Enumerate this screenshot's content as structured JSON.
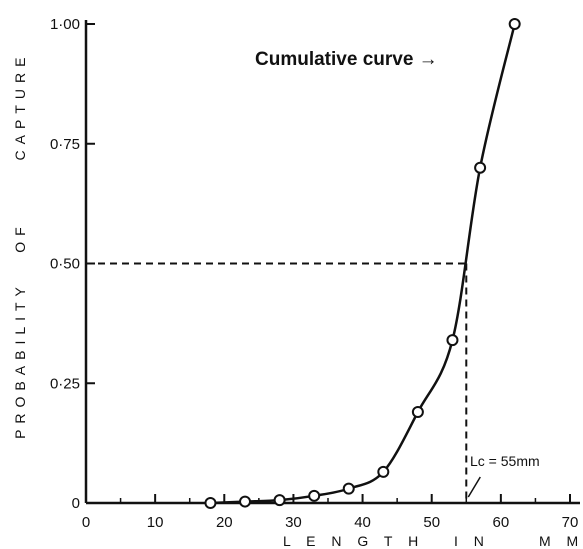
{
  "chart_data": {
    "type": "line",
    "xlim": [
      0,
      70
    ],
    "ylim": [
      0,
      1.0
    ],
    "x_ticks": [
      0,
      10,
      20,
      30,
      40,
      50,
      60,
      70
    ],
    "x_tick_labels": [
      "0",
      "10",
      "20",
      "30",
      "40",
      "50",
      "60",
      "70"
    ],
    "y_ticks": [
      0,
      0.25,
      0.5,
      0.75,
      1.0
    ],
    "y_tick_labels": [
      "0",
      "0·25",
      "0·50",
      "0·75",
      "1·00"
    ],
    "xlabel": "LENGTH IN MM",
    "xlabel_words": [
      "L E N G T H",
      "I N",
      "M M"
    ],
    "ylabel": "PROBABILITY OF CAPTURE",
    "ylabel_words": [
      "PROBABILITY",
      "OF",
      "CAPTURE"
    ],
    "grid": false,
    "series": [
      {
        "x": [
          18,
          23,
          28,
          33,
          38,
          43,
          48,
          53,
          57,
          62
        ],
        "y": [
          0.0,
          0.003,
          0.006,
          0.015,
          0.03,
          0.065,
          0.19,
          0.34,
          0.7,
          1.0
        ]
      }
    ],
    "reference": {
      "probability": 0.5,
      "length": 55
    },
    "annotations": {
      "curve_label": "Cumulative curve →",
      "lc_label": "Lc = 55mm"
    }
  }
}
